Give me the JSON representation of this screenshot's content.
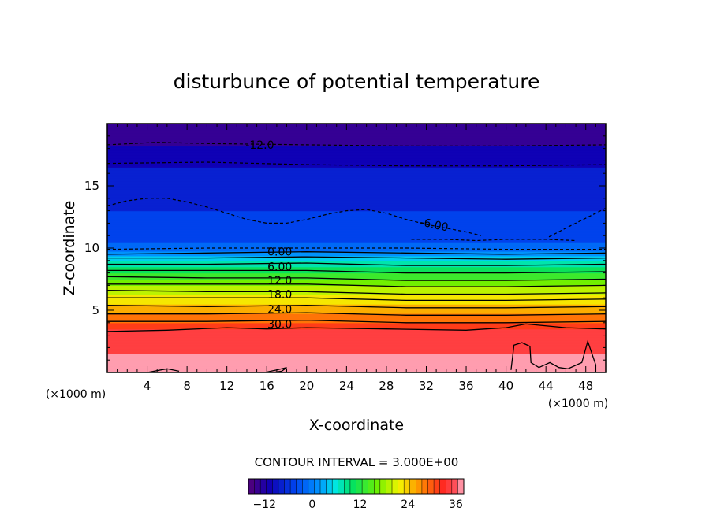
{
  "chart_data": {
    "type": "heatmap",
    "title": "disturbunce of potential temperature",
    "xlabel": "X-coordinate",
    "ylabel": "Z-coordinate",
    "x_unit": "(×1000 m)",
    "y_unit": "(×1000 m)",
    "xlim": [
      0,
      50
    ],
    "ylim": [
      0,
      20
    ],
    "x_ticks": [
      4,
      8,
      12,
      16,
      20,
      24,
      28,
      32,
      36,
      40,
      44,
      48
    ],
    "y_ticks": [
      5,
      10,
      15
    ],
    "contour_interval_label": "CONTOUR INTERVAL = 3.000E+00",
    "contour_interval": 3,
    "vertical_profile": {
      "z": [
        0,
        3,
        3.5,
        4,
        5,
        6,
        7,
        8,
        9,
        9.7,
        10.5,
        12,
        14,
        16.5,
        18.3,
        19.8
      ],
      "value": [
        37,
        35,
        33,
        30,
        26,
        22,
        18,
        12,
        6,
        0,
        -3,
        -5,
        -7,
        -9,
        -12,
        -14
      ]
    },
    "contour_labels": [
      {
        "text": "-12.0",
        "x": 15.3,
        "z": 18.3
      },
      {
        "text": "-6.00",
        "x": 32.8,
        "z": 11.9,
        "angle": 12
      },
      {
        "text": "0.00",
        "x": 17.3,
        "z": 9.7
      },
      {
        "text": "6.00",
        "x": 17.3,
        "z": 8.5
      },
      {
        "text": "12.0",
        "x": 17.3,
        "z": 7.4
      },
      {
        "text": "18.0",
        "x": 17.3,
        "z": 6.3
      },
      {
        "text": "24.0",
        "x": 17.3,
        "z": 5.1
      },
      {
        "text": "30.0",
        "x": 17.3,
        "z": 3.9
      }
    ],
    "contours": [
      {
        "level": -12,
        "dashed": true,
        "x": [
          0,
          5,
          10,
          20,
          30,
          40,
          50
        ],
        "z": [
          18.3,
          18.5,
          18.4,
          18.3,
          18.2,
          18.2,
          18.3
        ]
      },
      {
        "level": -9,
        "dashed": true,
        "x": [
          0,
          10,
          20,
          30,
          40,
          50
        ],
        "z": [
          16.8,
          16.9,
          16.7,
          16.6,
          16.6,
          16.7
        ]
      },
      {
        "level": -6,
        "dashed": true,
        "x": [
          0,
          2,
          4,
          6,
          8,
          10,
          12,
          14,
          16,
          18,
          20,
          22,
          24,
          26,
          28,
          30,
          32,
          34,
          36,
          37.5
        ],
        "z": [
          13.4,
          13.8,
          14.0,
          14.0,
          13.7,
          13.3,
          12.8,
          12.3,
          12.0,
          12.0,
          12.3,
          12.7,
          13.0,
          13.1,
          12.8,
          12.3,
          11.9,
          11.6,
          11.3,
          11.0
        ]
      },
      {
        "level": -6,
        "dashed": true,
        "x": [
          44.3,
          46,
          48,
          50
        ],
        "z": [
          10.9,
          11.6,
          12.4,
          13.2
        ]
      },
      {
        "level": -6,
        "dashed": true,
        "x": [
          30.5,
          34,
          37,
          40,
          44,
          47
        ],
        "z": [
          10.7,
          10.7,
          10.6,
          10.7,
          10.7,
          10.6
        ]
      },
      {
        "level": -3,
        "dashed": true,
        "x": [
          0,
          10,
          20,
          30,
          40,
          50
        ],
        "z": [
          9.9,
          10.0,
          10.0,
          10.0,
          9.9,
          9.9
        ]
      },
      {
        "level": 0,
        "dashed": false,
        "x": [
          0,
          10,
          20,
          30,
          40,
          50
        ],
        "z": [
          9.5,
          9.6,
          9.7,
          9.6,
          9.5,
          9.6
        ]
      },
      {
        "level": 3,
        "dashed": false,
        "x": [
          0,
          10,
          20,
          30,
          40,
          50
        ],
        "z": [
          9.2,
          9.2,
          9.3,
          9.2,
          9.1,
          9.2
        ]
      },
      {
        "level": 6,
        "dashed": false,
        "x": [
          0,
          10,
          20,
          30,
          40,
          50
        ],
        "z": [
          8.7,
          8.7,
          8.8,
          8.6,
          8.6,
          8.7
        ]
      },
      {
        "level": 9,
        "dashed": false,
        "x": [
          0,
          10,
          20,
          30,
          40,
          50
        ],
        "z": [
          8.2,
          8.2,
          8.2,
          8.0,
          8.0,
          8.1
        ]
      },
      {
        "level": 12,
        "dashed": false,
        "x": [
          0,
          10,
          20,
          30,
          40,
          50
        ],
        "z": [
          7.7,
          7.6,
          7.6,
          7.4,
          7.4,
          7.5
        ]
      },
      {
        "level": 15,
        "dashed": false,
        "x": [
          0,
          10,
          20,
          30,
          40,
          50
        ],
        "z": [
          7.1,
          7.1,
          7.1,
          6.9,
          6.9,
          7.0
        ]
      },
      {
        "level": 18,
        "dashed": false,
        "x": [
          0,
          10,
          20,
          30,
          40,
          50
        ],
        "z": [
          6.6,
          6.5,
          6.5,
          6.3,
          6.3,
          6.4
        ]
      },
      {
        "level": 21,
        "dashed": false,
        "x": [
          0,
          10,
          20,
          30,
          40,
          50
        ],
        "z": [
          6.0,
          6.0,
          6.0,
          5.8,
          5.8,
          5.9
        ]
      },
      {
        "level": 24,
        "dashed": false,
        "x": [
          0,
          10,
          20,
          30,
          40,
          50
        ],
        "z": [
          5.4,
          5.3,
          5.4,
          5.2,
          5.2,
          5.3
        ]
      },
      {
        "level": 27,
        "dashed": false,
        "x": [
          0,
          10,
          20,
          30,
          40,
          50
        ],
        "z": [
          4.7,
          4.7,
          4.8,
          4.6,
          4.6,
          4.7
        ]
      },
      {
        "level": 30,
        "dashed": false,
        "x": [
          0,
          10,
          20,
          30,
          40,
          50
        ],
        "z": [
          4.1,
          4.1,
          4.2,
          4.0,
          4.0,
          4.1
        ]
      },
      {
        "level": 33,
        "dashed": false,
        "x": [
          0,
          6,
          12,
          16,
          20,
          28,
          36,
          40,
          42,
          46,
          50
        ],
        "z": [
          3.3,
          3.4,
          3.6,
          3.5,
          3.6,
          3.5,
          3.4,
          3.6,
          3.9,
          3.6,
          3.5
        ]
      },
      {
        "level": 36,
        "dashed": false,
        "x": [
          40.5,
          40.8,
          41.6,
          42.4,
          42.5,
          43.3,
          44.4,
          45.3,
          46.2,
          47.6,
          48.2,
          48.5,
          49.0,
          49.0
        ],
        "z": [
          0.2,
          2.2,
          2.4,
          2.1,
          0.8,
          0.4,
          0.8,
          0.4,
          0.3,
          0.8,
          2.5,
          1.8,
          0.6,
          0
        ]
      },
      {
        "level": 36,
        "dashed": false,
        "x": [
          4.0,
          6.0,
          7.2
        ],
        "z": [
          0.0,
          0.3,
          0.1
        ]
      },
      {
        "level": 36,
        "dashed": false,
        "x": [
          15.8,
          17.0,
          18.0,
          17.5,
          16.5
        ],
        "z": [
          0.0,
          0.2,
          0.4,
          0.1,
          0.0
        ]
      }
    ],
    "colorbar": {
      "min": -16,
      "max": 38,
      "ticks": [
        -12,
        0,
        12,
        24,
        36
      ]
    },
    "grid": false,
    "legend": "none"
  }
}
